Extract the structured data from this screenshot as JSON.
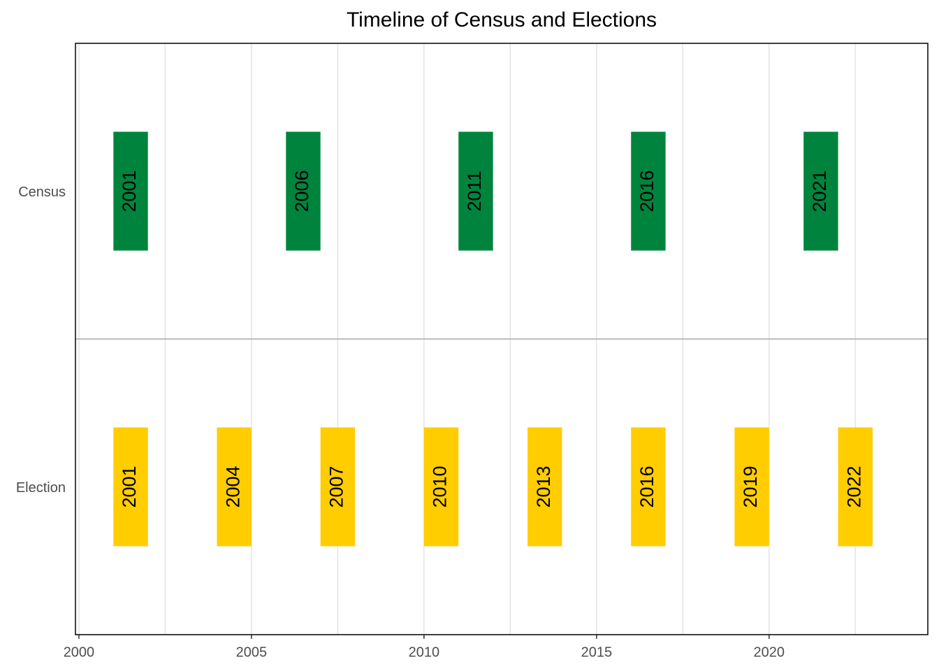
{
  "chart_data": {
    "type": "timeline",
    "title": "Timeline of Census and Elections",
    "series": [
      {
        "name": "Census",
        "color": "#00843d",
        "values": [
          2001,
          2006,
          2011,
          2016,
          2021
        ]
      },
      {
        "name": "Election",
        "color": "#ffcd00",
        "values": [
          2001,
          2004,
          2007,
          2010,
          2013,
          2016,
          2019,
          2022
        ]
      }
    ],
    "bar_width": 1,
    "xlim": [
      1999.9,
      2024.6
    ],
    "xticks": [
      2000,
      2005,
      2010,
      2015,
      2020
    ],
    "xminor": [
      2002.5,
      2007.5,
      2012.5,
      2017.5,
      2022.5
    ],
    "grid": true
  }
}
